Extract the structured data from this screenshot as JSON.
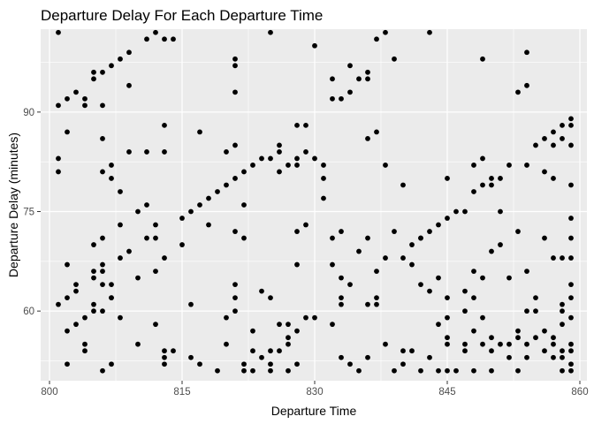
{
  "chart_data": {
    "type": "scatter",
    "title": "Departure Delay For Each Departure Time",
    "xlabel": "Departure Time",
    "ylabel": "Departure Delay (minutes)",
    "xlim": [
      799.0,
      860.8
    ],
    "ylim": [
      49.5,
      102.5
    ],
    "x_ticks": [
      800,
      815,
      830,
      845,
      860
    ],
    "y_ticks": [
      60,
      75,
      90
    ],
    "grid": true,
    "legend": "none",
    "colors": {
      "panel": "#EBEBEB",
      "grid": "#FFFFFF",
      "point": "#000000",
      "tick_text": "#4D4D4D",
      "tick_mark": "#333333"
    },
    "points": [
      [
        801,
        102
      ],
      [
        801,
        91
      ],
      [
        801,
        83
      ],
      [
        801,
        81
      ],
      [
        801,
        61
      ],
      [
        802,
        92
      ],
      [
        802,
        87
      ],
      [
        802,
        67
      ],
      [
        802,
        62
      ],
      [
        802,
        57
      ],
      [
        802,
        52
      ],
      [
        803,
        93
      ],
      [
        803,
        64
      ],
      [
        803,
        63
      ],
      [
        803,
        58
      ],
      [
        804,
        92
      ],
      [
        804,
        91
      ],
      [
        804,
        59
      ],
      [
        804,
        55
      ],
      [
        804,
        54
      ],
      [
        805,
        96
      ],
      [
        805,
        95
      ],
      [
        805,
        70
      ],
      [
        805,
        66
      ],
      [
        805,
        65
      ],
      [
        805,
        61
      ],
      [
        805,
        60
      ],
      [
        806,
        96
      ],
      [
        806,
        91
      ],
      [
        806,
        86
      ],
      [
        806,
        81
      ],
      [
        806,
        71
      ],
      [
        806,
        67
      ],
      [
        806,
        66
      ],
      [
        806,
        64
      ],
      [
        806,
        60
      ],
      [
        806,
        51
      ],
      [
        807,
        97
      ],
      [
        807,
        82
      ],
      [
        807,
        80
      ],
      [
        807,
        64
      ],
      [
        807,
        62
      ],
      [
        807,
        62
      ],
      [
        807,
        52
      ],
      [
        808,
        98
      ],
      [
        808,
        78
      ],
      [
        808,
        73
      ],
      [
        808,
        68
      ],
      [
        808,
        59
      ],
      [
        809,
        99
      ],
      [
        809,
        94
      ],
      [
        809,
        84
      ],
      [
        809,
        69
      ],
      [
        810,
        75
      ],
      [
        810,
        65
      ],
      [
        810,
        55
      ],
      [
        811,
        101
      ],
      [
        811,
        84
      ],
      [
        811,
        76
      ],
      [
        811,
        71
      ],
      [
        812,
        102
      ],
      [
        812,
        73
      ],
      [
        812,
        71
      ],
      [
        812,
        66
      ],
      [
        812,
        58
      ],
      [
        813,
        101
      ],
      [
        813,
        88
      ],
      [
        813,
        84
      ],
      [
        813,
        68
      ],
      [
        813,
        54
      ],
      [
        813,
        53
      ],
      [
        813,
        52
      ],
      [
        814,
        101
      ],
      [
        814,
        54
      ],
      [
        815,
        74
      ],
      [
        815,
        70
      ],
      [
        816,
        75
      ],
      [
        816,
        61
      ],
      [
        816,
        53
      ],
      [
        817,
        87
      ],
      [
        817,
        76
      ],
      [
        817,
        52
      ],
      [
        818,
        77
      ],
      [
        818,
        73
      ],
      [
        819,
        78
      ],
      [
        819,
        51
      ],
      [
        820,
        84
      ],
      [
        820,
        79
      ],
      [
        820,
        59
      ],
      [
        820,
        55
      ],
      [
        821,
        98
      ],
      [
        821,
        97
      ],
      [
        821,
        93
      ],
      [
        821,
        85
      ],
      [
        821,
        80
      ],
      [
        821,
        72
      ],
      [
        821,
        64
      ],
      [
        821,
        62
      ],
      [
        821,
        60
      ],
      [
        822,
        81
      ],
      [
        822,
        76
      ],
      [
        822,
        71
      ],
      [
        822,
        52
      ],
      [
        822,
        51
      ],
      [
        823,
        82
      ],
      [
        823,
        57
      ],
      [
        823,
        54
      ],
      [
        823,
        51
      ],
      [
        824,
        83
      ],
      [
        824,
        63
      ],
      [
        824,
        53
      ],
      [
        825,
        102
      ],
      [
        825,
        83
      ],
      [
        825,
        62
      ],
      [
        825,
        54
      ],
      [
        825,
        52
      ],
      [
        825,
        51
      ],
      [
        826,
        85
      ],
      [
        826,
        84
      ],
      [
        826,
        81
      ],
      [
        826,
        58
      ],
      [
        826,
        54
      ],
      [
        827,
        82
      ],
      [
        827,
        58
      ],
      [
        827,
        56
      ],
      [
        827,
        55
      ],
      [
        827,
        51
      ],
      [
        828,
        88
      ],
      [
        828,
        83
      ],
      [
        828,
        82
      ],
      [
        828,
        72
      ],
      [
        828,
        67
      ],
      [
        828,
        57
      ],
      [
        828,
        52
      ],
      [
        829,
        88
      ],
      [
        829,
        84
      ],
      [
        829,
        73
      ],
      [
        829,
        59
      ],
      [
        830,
        100
      ],
      [
        830,
        83
      ],
      [
        830,
        59
      ],
      [
        831,
        82
      ],
      [
        831,
        80
      ],
      [
        831,
        77
      ],
      [
        832,
        95
      ],
      [
        832,
        92
      ],
      [
        832,
        71
      ],
      [
        832,
        67
      ],
      [
        832,
        58
      ],
      [
        833,
        92
      ],
      [
        833,
        72
      ],
      [
        833,
        65
      ],
      [
        833,
        61
      ],
      [
        833,
        62
      ],
      [
        833,
        53
      ],
      [
        834,
        97
      ],
      [
        834,
        93
      ],
      [
        834,
        64
      ],
      [
        834,
        52
      ],
      [
        835,
        95
      ],
      [
        835,
        69
      ],
      [
        835,
        51
      ],
      [
        836,
        96
      ],
      [
        836,
        95
      ],
      [
        836,
        86
      ],
      [
        836,
        71
      ],
      [
        836,
        61
      ],
      [
        836,
        53
      ],
      [
        837,
        101
      ],
      [
        837,
        87
      ],
      [
        837,
        66
      ],
      [
        837,
        62
      ],
      [
        837,
        61
      ],
      [
        838,
        102
      ],
      [
        838,
        82
      ],
      [
        838,
        68
      ],
      [
        838,
        55
      ],
      [
        839,
        98
      ],
      [
        839,
        72
      ],
      [
        839,
        51
      ],
      [
        840,
        79
      ],
      [
        840,
        68
      ],
      [
        840,
        54
      ],
      [
        840,
        52
      ],
      [
        841,
        70
      ],
      [
        841,
        67
      ],
      [
        841,
        54
      ],
      [
        842,
        71
      ],
      [
        842,
        71
      ],
      [
        842,
        64
      ],
      [
        842,
        51
      ],
      [
        843,
        102
      ],
      [
        843,
        72
      ],
      [
        843,
        63
      ],
      [
        843,
        53
      ],
      [
        844,
        73
      ],
      [
        844,
        65
      ],
      [
        844,
        58
      ],
      [
        844,
        51
      ],
      [
        845,
        80
      ],
      [
        845,
        74
      ],
      [
        845,
        62
      ],
      [
        845,
        59
      ],
      [
        845,
        56
      ],
      [
        845,
        55
      ],
      [
        845,
        51
      ],
      [
        846,
        75
      ],
      [
        846,
        51
      ],
      [
        847,
        75
      ],
      [
        847,
        63
      ],
      [
        847,
        60
      ],
      [
        847,
        55
      ],
      [
        847,
        54
      ],
      [
        848,
        82
      ],
      [
        848,
        78
      ],
      [
        848,
        66
      ],
      [
        848,
        62
      ],
      [
        848,
        57
      ],
      [
        848,
        51
      ],
      [
        849,
        98
      ],
      [
        849,
        83
      ],
      [
        849,
        79
      ],
      [
        849,
        65
      ],
      [
        849,
        59
      ],
      [
        849,
        55
      ],
      [
        850,
        80
      ],
      [
        850,
        79
      ],
      [
        850,
        69
      ],
      [
        850,
        56
      ],
      [
        850,
        54
      ],
      [
        850,
        51
      ],
      [
        851,
        80
      ],
      [
        851,
        75
      ],
      [
        851,
        70
      ],
      [
        851,
        55
      ],
      [
        852,
        82
      ],
      [
        852,
        65
      ],
      [
        852,
        55
      ],
      [
        852,
        53
      ],
      [
        853,
        93
      ],
      [
        853,
        72
      ],
      [
        853,
        57
      ],
      [
        853,
        56
      ],
      [
        853,
        51
      ],
      [
        854,
        99
      ],
      [
        854,
        94
      ],
      [
        854,
        82
      ],
      [
        854,
        66
      ],
      [
        854,
        60
      ],
      [
        854,
        55
      ],
      [
        854,
        53
      ],
      [
        855,
        85
      ],
      [
        855,
        62
      ],
      [
        855,
        60
      ],
      [
        855,
        56
      ],
      [
        856,
        86
      ],
      [
        856,
        81
      ],
      [
        856,
        71
      ],
      [
        856,
        57
      ],
      [
        856,
        54
      ],
      [
        857,
        87
      ],
      [
        857,
        85
      ],
      [
        857,
        80
      ],
      [
        857,
        68
      ],
      [
        857,
        56
      ],
      [
        857,
        55
      ],
      [
        857,
        53
      ],
      [
        858,
        88
      ],
      [
        858,
        86
      ],
      [
        858,
        68
      ],
      [
        858,
        61
      ],
      [
        858,
        60
      ],
      [
        858,
        58
      ],
      [
        858,
        54
      ],
      [
        858,
        53
      ],
      [
        858,
        51
      ],
      [
        859,
        88
      ],
      [
        859,
        89
      ],
      [
        859,
        85
      ],
      [
        859,
        79
      ],
      [
        859,
        74
      ],
      [
        859,
        71
      ],
      [
        859,
        68
      ],
      [
        859,
        64
      ],
      [
        859,
        62
      ],
      [
        859,
        59
      ],
      [
        859,
        55
      ],
      [
        859,
        54
      ],
      [
        859,
        52
      ],
      [
        859,
        51
      ]
    ]
  }
}
